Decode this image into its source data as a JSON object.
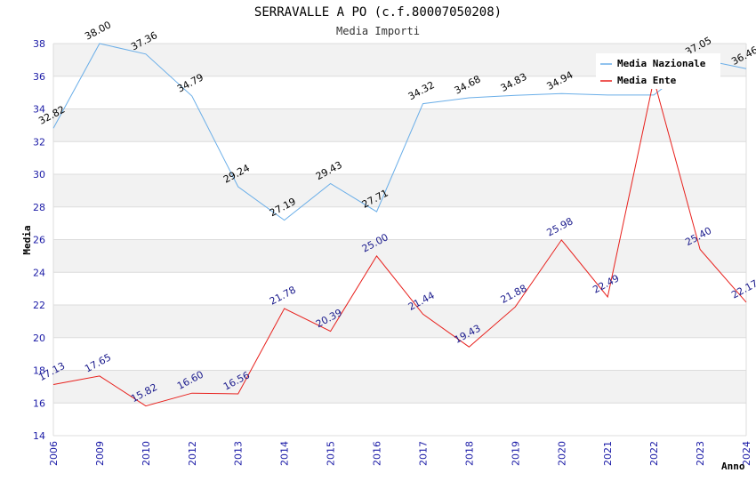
{
  "chart_data": {
    "type": "line",
    "title": "SERRAVALLE A PO (c.f.80007050208)",
    "subtitle": "Media Importi",
    "xlabel": "Anno",
    "ylabel": "Media",
    "ylim": [
      14,
      38
    ],
    "yticks": [
      "14",
      "16",
      "18",
      "20",
      "22",
      "24",
      "26",
      "28",
      "30",
      "32",
      "34",
      "36",
      "38"
    ],
    "categories": [
      "2006",
      "2009",
      "2010",
      "2012",
      "2013",
      "2014",
      "2015",
      "2016",
      "2017",
      "2018",
      "2019",
      "2020",
      "2021",
      "2022",
      "2023",
      "2024"
    ],
    "legend_position": "top-right",
    "series": [
      {
        "name": "Media Nazionale",
        "color": "#6aaee8",
        "values": [
          32.82,
          38.0,
          37.36,
          34.79,
          29.24,
          27.19,
          29.43,
          27.71,
          34.32,
          34.68,
          34.83,
          34.94,
          34.85,
          34.85,
          37.05,
          36.46
        ],
        "labels": [
          "32.82",
          "38.00",
          "37.36",
          "34.79",
          "29.24",
          "27.19",
          "29.43",
          "27.71",
          "34.32",
          "34.68",
          "34.83",
          "34.94",
          "",
          "",
          "37.05",
          "36.46"
        ]
      },
      {
        "name": "Media Ente",
        "color": "#e8201c",
        "values": [
          17.13,
          17.65,
          15.82,
          16.6,
          16.56,
          21.78,
          20.39,
          25.0,
          21.44,
          19.43,
          21.88,
          25.98,
          22.49,
          35.8,
          25.4,
          22.17
        ],
        "labels": [
          "17.13",
          "17.65",
          "15.82",
          "16.60",
          "16.56",
          "21.78",
          "20.39",
          "25.00",
          "21.44",
          "19.43",
          "21.88",
          "25.98",
          "22.49",
          "",
          "25.40",
          "22.17"
        ]
      }
    ]
  }
}
